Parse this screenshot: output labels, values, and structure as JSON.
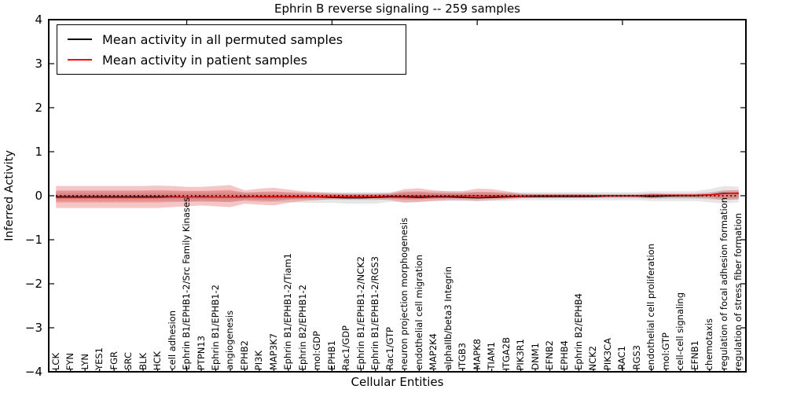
{
  "title": "Ephrin B reverse signaling -- 259 samples",
  "axes": {
    "xlabel": "Cellular Entities",
    "ylabel": "Inferred Activity",
    "yticks": [
      4,
      3,
      2,
      1,
      0,
      -1,
      -2,
      -3,
      -4
    ],
    "ylim": [
      -4,
      4
    ],
    "x_major_tick_indices": [
      9,
      19,
      29,
      39
    ]
  },
  "legend": {
    "entries": [
      {
        "label": "Mean activity in all permuted samples",
        "color": "#000000"
      },
      {
        "label": "Mean activity in patient samples",
        "color": "#ff0000"
      }
    ]
  },
  "chart_data": {
    "type": "area",
    "title": "Ephrin B reverse signaling -- 259 samples",
    "xlabel": "Cellular Entities",
    "ylabel": "Inferred Activity",
    "ylim": [
      -4,
      4
    ],
    "legend_position": "upper left",
    "grid": false,
    "categories": [
      "LCK",
      "FYN",
      "LYN",
      "YES1",
      "FGR",
      "SRC",
      "BLK",
      "HCK",
      "cell adhesion",
      "Ephrin B1/EPHB1-2/Src Family Kinases",
      "PTPN13",
      "Ephrin B1/EPHB1-2",
      "angiogenesis",
      "EPHB2",
      "PI3K",
      "MAP3K7",
      "Ephrin B1/EPHB1-2/Tiam1",
      "Ephrin B2/EPHB1-2",
      "mol:GDP",
      "EPHB1",
      "Rac1/GDP",
      "Ephrin B1/EPHB1-2/NCK2",
      "Ephrin B1/EPHB1-2/RGS3",
      "Rac1/GTP",
      "neuron projection morphogenesis",
      "endothelial cell migration",
      "MAP2K4",
      "alphaIIb/beta3 Integrin",
      "ITGB3",
      "MAPK8",
      "TIAM1",
      "ITGA2B",
      "PIK3R1",
      "DNM1",
      "EFNB2",
      "EPHB4",
      "Ephrin B2/EPHB4",
      "NCK2",
      "PIK3CA",
      "RAC1",
      "RGS3",
      "endothelial cell proliferation",
      "mol:GTP",
      "cell-cell signaling",
      "EFNB1",
      "chemotaxis",
      "regulation of focal adhesion formation",
      "regulation of stress fiber formation"
    ],
    "series": [
      {
        "name": "Mean activity in all permuted samples",
        "color": "#000000",
        "values": [
          -0.02,
          -0.02,
          -0.02,
          -0.02,
          -0.02,
          -0.02,
          -0.02,
          -0.02,
          -0.02,
          -0.03,
          -0.02,
          -0.03,
          -0.03,
          -0.02,
          -0.03,
          -0.03,
          -0.03,
          -0.03,
          -0.03,
          -0.04,
          -0.05,
          -0.05,
          -0.04,
          -0.03,
          -0.03,
          -0.04,
          -0.03,
          -0.03,
          -0.04,
          -0.05,
          -0.04,
          -0.03,
          -0.02,
          -0.02,
          -0.02,
          -0.02,
          -0.02,
          -0.02,
          -0.01,
          -0.01,
          -0.01,
          -0.02,
          -0.01,
          0.0,
          0.0,
          0.02,
          0.06,
          0.05
        ]
      },
      {
        "name": "Mean activity in patient samples",
        "color": "#e01010",
        "values": [
          -0.04,
          -0.04,
          -0.04,
          -0.04,
          -0.04,
          -0.04,
          -0.04,
          -0.04,
          -0.03,
          -0.03,
          -0.03,
          -0.03,
          -0.03,
          -0.03,
          -0.02,
          -0.02,
          -0.02,
          -0.02,
          -0.02,
          -0.02,
          -0.02,
          -0.02,
          -0.02,
          -0.01,
          -0.01,
          -0.01,
          -0.01,
          -0.01,
          -0.01,
          -0.01,
          -0.01,
          -0.01,
          -0.01,
          0.0,
          0.0,
          0.0,
          0.0,
          0.0,
          0.0,
          0.0,
          0.0,
          0.01,
          0.01,
          0.01,
          0.01,
          0.02,
          0.05,
          0.06
        ]
      }
    ],
    "bands": [
      {
        "name": "permuted-samples-band",
        "color": "rgba(130,130,130,0.20)",
        "inner_scale": 0.55,
        "upper": [
          0.1,
          0.1,
          0.1,
          0.1,
          0.1,
          0.1,
          0.1,
          0.1,
          0.1,
          0.1,
          0.1,
          0.1,
          0.1,
          0.08,
          0.08,
          0.08,
          0.08,
          0.08,
          0.08,
          0.08,
          0.08,
          0.08,
          0.08,
          0.08,
          0.1,
          0.1,
          0.1,
          0.1,
          0.1,
          0.08,
          0.08,
          0.08,
          0.08,
          0.08,
          0.08,
          0.08,
          0.08,
          0.08,
          0.08,
          0.08,
          0.08,
          0.1,
          0.1,
          0.1,
          0.1,
          0.15,
          0.22,
          0.2
        ],
        "lower": [
          -0.12,
          -0.12,
          -0.12,
          -0.12,
          -0.12,
          -0.12,
          -0.12,
          -0.12,
          -0.12,
          -0.14,
          -0.14,
          -0.14,
          -0.14,
          -0.12,
          -0.14,
          -0.14,
          -0.14,
          -0.16,
          -0.16,
          -0.16,
          -0.18,
          -0.18,
          -0.18,
          -0.14,
          -0.14,
          -0.14,
          -0.12,
          -0.12,
          -0.12,
          -0.12,
          -0.12,
          -0.12,
          -0.1,
          -0.1,
          -0.1,
          -0.1,
          -0.1,
          -0.1,
          -0.1,
          -0.1,
          -0.1,
          -0.12,
          -0.12,
          -0.12,
          -0.12,
          -0.15,
          -0.18,
          -0.15
        ]
      },
      {
        "name": "patient-samples-band",
        "color": "rgba(222,45,45,0.27)",
        "inner_scale": 0.55,
        "upper": [
          0.22,
          0.22,
          0.22,
          0.22,
          0.22,
          0.22,
          0.22,
          0.23,
          0.22,
          0.2,
          0.2,
          0.22,
          0.24,
          0.12,
          0.16,
          0.18,
          0.14,
          0.1,
          0.08,
          0.06,
          0.05,
          0.05,
          0.05,
          0.06,
          0.15,
          0.17,
          0.12,
          0.1,
          0.1,
          0.16,
          0.15,
          0.1,
          0.05,
          0.04,
          0.04,
          0.04,
          0.04,
          0.03,
          0.03,
          0.03,
          0.03,
          0.05,
          0.04,
          0.04,
          0.04,
          0.06,
          0.12,
          0.13
        ],
        "lower": [
          -0.28,
          -0.28,
          -0.28,
          -0.28,
          -0.28,
          -0.28,
          -0.28,
          -0.28,
          -0.26,
          -0.24,
          -0.22,
          -0.24,
          -0.26,
          -0.18,
          -0.2,
          -0.22,
          -0.16,
          -0.12,
          -0.1,
          -0.08,
          -0.08,
          -0.08,
          -0.08,
          -0.1,
          -0.16,
          -0.14,
          -0.12,
          -0.1,
          -0.1,
          -0.12,
          -0.1,
          -0.08,
          -0.06,
          -0.05,
          -0.05,
          -0.05,
          -0.05,
          -0.04,
          -0.04,
          -0.04,
          -0.04,
          -0.06,
          -0.05,
          -0.05,
          -0.05,
          -0.06,
          -0.1,
          -0.08
        ]
      }
    ],
    "reference_line": {
      "y": 0,
      "style": "dotted",
      "color": "#000000"
    }
  }
}
